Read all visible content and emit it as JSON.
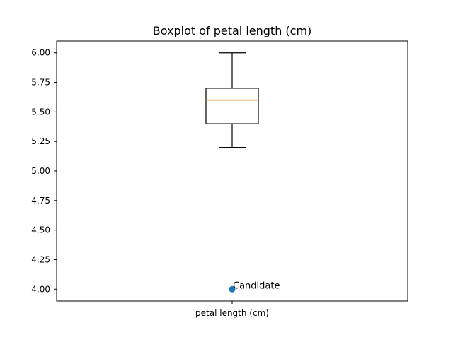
{
  "chart_data": {
    "type": "box",
    "title": "Boxplot of petal length (cm)",
    "xlabel": "",
    "ylabel": "",
    "categories": [
      "petal length (cm)"
    ],
    "ylim": [
      3.9,
      6.1
    ],
    "yticks": [
      "4.00",
      "4.25",
      "4.50",
      "4.75",
      "5.00",
      "5.25",
      "5.50",
      "5.75",
      "6.00"
    ],
    "box": {
      "whisker_low": 5.2,
      "q1": 5.4,
      "median": 5.6,
      "q3": 5.7,
      "whisker_high": 6.0
    },
    "point": {
      "label": "Candidate",
      "x": "petal length (cm)",
      "y": 4.0
    },
    "colors": {
      "median": "#ff7f0e",
      "point": "#1f77b4",
      "box": "#000000",
      "axis": "#000000"
    },
    "grid": false,
    "legend": "none"
  }
}
